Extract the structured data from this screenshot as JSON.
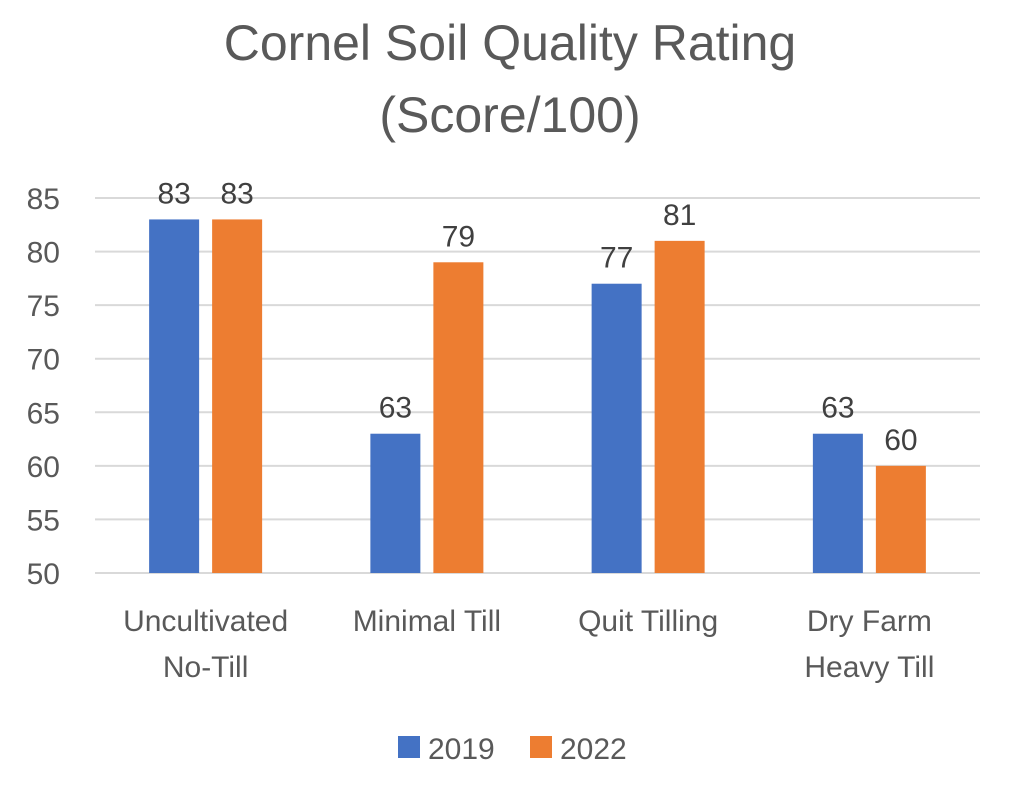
{
  "chart_data": {
    "type": "bar",
    "title_lines": [
      "Cornel Soil Quality Rating",
      "(Score/100)"
    ],
    "categories": [
      [
        "Uncultivated",
        "No-Till"
      ],
      [
        "Minimal Till"
      ],
      [
        "Quit Tilling"
      ],
      [
        "Dry Farm",
        "Heavy Till"
      ]
    ],
    "series": [
      {
        "name": "2019",
        "color": "#4472c4",
        "values": [
          83,
          63,
          77,
          63
        ]
      },
      {
        "name": "2022",
        "color": "#ed7d31",
        "values": [
          83,
          79,
          81,
          60
        ]
      }
    ],
    "ylim": [
      50,
      85
    ],
    "yticks": [
      50,
      55,
      60,
      65,
      70,
      75,
      80,
      85
    ],
    "grid": true,
    "legend_position": "bottom",
    "xlabel": "",
    "ylabel": ""
  }
}
